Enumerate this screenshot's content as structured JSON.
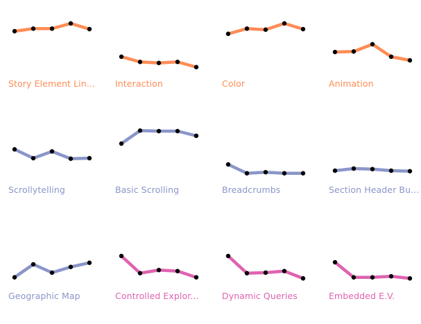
{
  "chart_data": {
    "type": "line",
    "title": "",
    "ylim": [
      0,
      100
    ],
    "colors": {
      "orange": "#ff8c55",
      "blue": "#8a95c9",
      "pink": "#df62b0"
    },
    "panels": [
      {
        "label": "Story Element Lin...",
        "color": "orange",
        "values": [
          80,
          85,
          85,
          95,
          84
        ]
      },
      {
        "label": "Interaction",
        "color": "orange",
        "values": [
          31,
          21,
          19,
          21,
          11
        ]
      },
      {
        "label": "Color",
        "color": "orange",
        "values": [
          75,
          85,
          83,
          95,
          84
        ]
      },
      {
        "label": "Animation",
        "color": "orange",
        "values": [
          40,
          41,
          55,
          31,
          24
        ]
      },
      {
        "label": "Scrollytelling",
        "color": "blue",
        "values": [
          57,
          40,
          53,
          39,
          40
        ]
      },
      {
        "label": "Basic Scrolling",
        "color": "blue",
        "values": [
          68,
          93,
          92,
          92,
          83
        ]
      },
      {
        "label": "Breadcrumbs",
        "color": "blue",
        "values": [
          28,
          11,
          13,
          11,
          11
        ]
      },
      {
        "label": "Section Header Bu...",
        "color": "blue",
        "values": [
          16,
          20,
          19,
          16,
          15
        ]
      },
      {
        "label": "Geographic Map",
        "color": "blue",
        "values": [
          15,
          40,
          24,
          35,
          43
        ]
      },
      {
        "label": "Controlled Explor...",
        "color": "pink",
        "values": [
          56,
          23,
          29,
          27,
          15
        ]
      },
      {
        "label": "Dynamic Queries",
        "color": "pink",
        "values": [
          56,
          23,
          24,
          27,
          13
        ]
      },
      {
        "label": "Embedded E.V.",
        "color": "pink",
        "values": [
          44,
          15,
          15,
          17,
          13
        ]
      }
    ]
  }
}
